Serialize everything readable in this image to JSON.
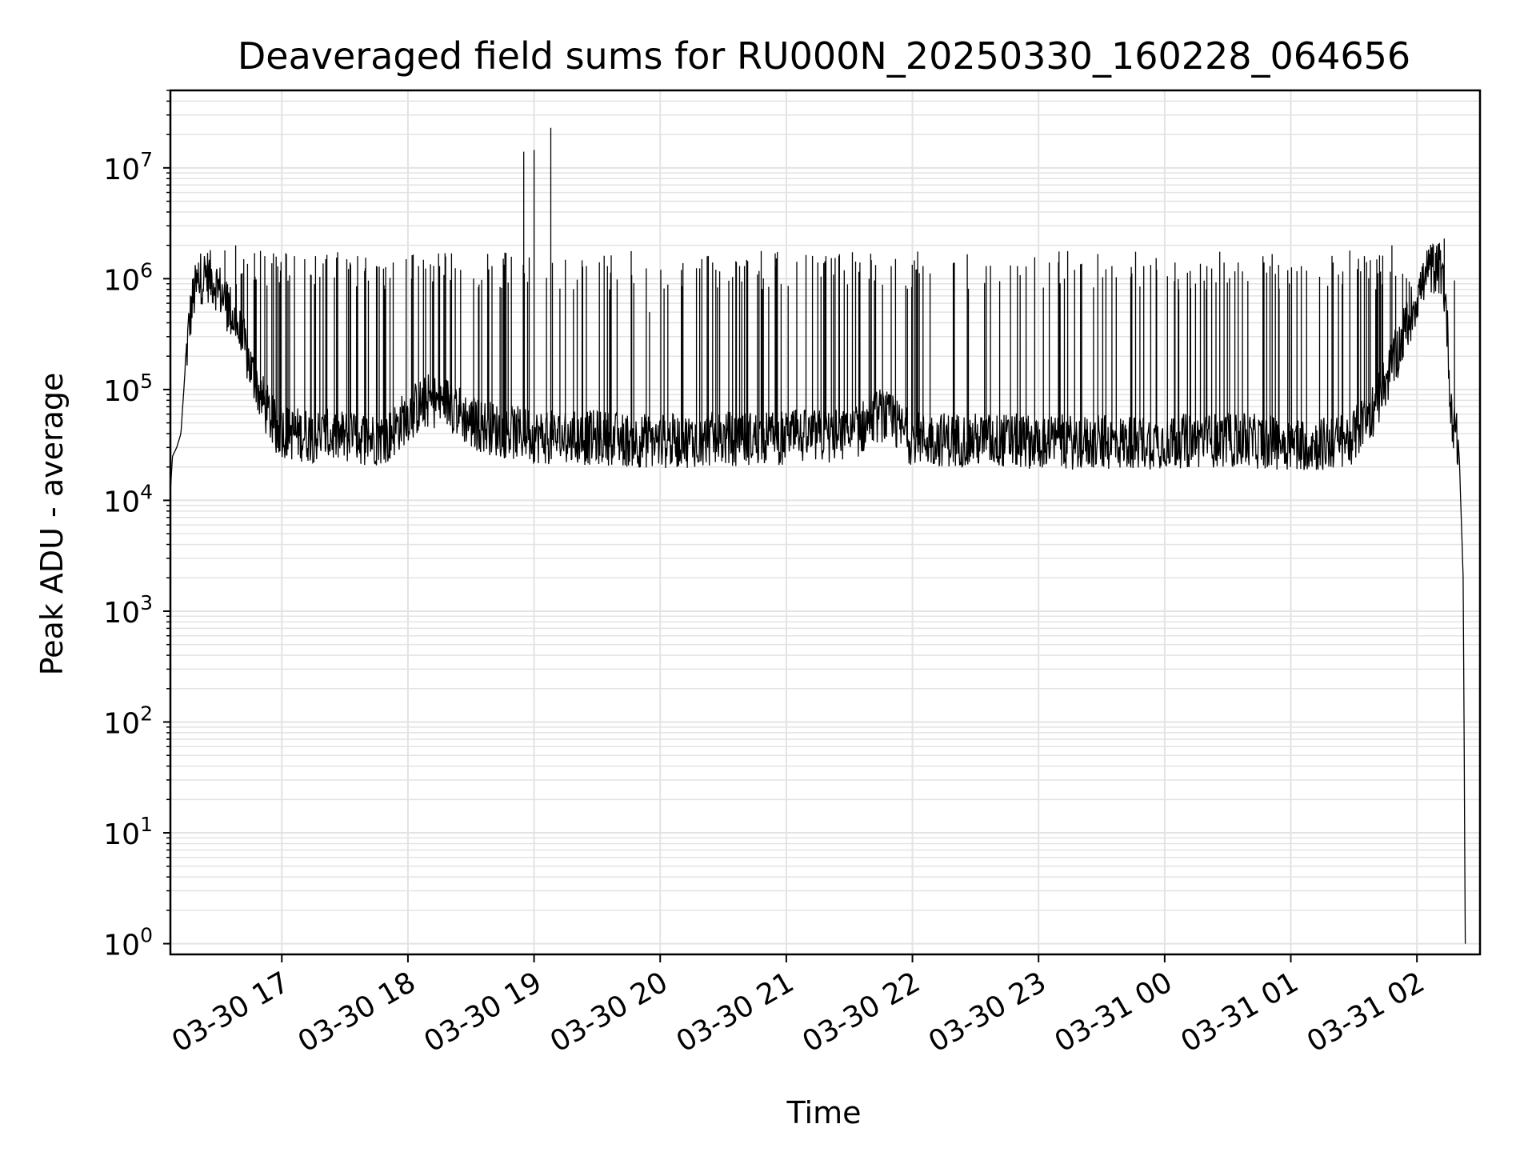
{
  "chart_data": {
    "type": "line",
    "title": "Deaveraged field sums for RU000N_20250330_160228_064656",
    "xlabel": "Time",
    "ylabel": "Peak ADU - average",
    "yscale": "log",
    "ylim": [
      0.8,
      50000000
    ],
    "xlim": [
      "2025-03-30 16:07",
      "2025-03-31 02:30"
    ],
    "grid": true,
    "line_color": "#000000",
    "grid_color": "#e3e3e3",
    "x_ticks": [
      {
        "t": "2025-03-30 17:00",
        "label": "03-30 17"
      },
      {
        "t": "2025-03-30 18:00",
        "label": "03-30 18"
      },
      {
        "t": "2025-03-30 19:00",
        "label": "03-30 19"
      },
      {
        "t": "2025-03-30 20:00",
        "label": "03-30 20"
      },
      {
        "t": "2025-03-30 21:00",
        "label": "03-30 21"
      },
      {
        "t": "2025-03-30 22:00",
        "label": "03-30 22"
      },
      {
        "t": "2025-03-30 23:00",
        "label": "03-30 23"
      },
      {
        "t": "2025-03-31 00:00",
        "label": "03-31 00"
      },
      {
        "t": "2025-03-31 01:00",
        "label": "03-31 01"
      },
      {
        "t": "2025-03-31 02:00",
        "label": "03-31 02"
      }
    ],
    "y_ticks": [
      {
        "base": "10",
        "exp": "0",
        "value": 1
      },
      {
        "base": "10",
        "exp": "1",
        "value": 10
      },
      {
        "base": "10",
        "exp": "2",
        "value": 100
      },
      {
        "base": "10",
        "exp": "3",
        "value": 1000
      },
      {
        "base": "10",
        "exp": "4",
        "value": 10000
      },
      {
        "base": "10",
        "exp": "5",
        "value": 100000
      },
      {
        "base": "10",
        "exp": "6",
        "value": 1000000
      },
      {
        "base": "10",
        "exp": "7",
        "value": 10000000
      }
    ],
    "series": [
      {
        "x": [
          "2025-03-30 16:07",
          "2025-03-30 16:08",
          "2025-03-30 16:10",
          "2025-03-30 16:12",
          "2025-03-30 16:14",
          "2025-03-30 16:16",
          "2025-03-30 16:18",
          "2025-03-30 16:21",
          "2025-03-30 16:24",
          "2025-03-30 16:28",
          "2025-03-30 16:32",
          "2025-03-30 16:37",
          "2025-03-30 16:42",
          "2025-03-30 16:47",
          "2025-03-30 16:52",
          "2025-03-30 16:57",
          "2025-03-30 17:05",
          "2025-03-30 17:20",
          "2025-03-30 17:35",
          "2025-03-30 17:50",
          "2025-03-30 18:00",
          "2025-03-30 18:10",
          "2025-03-30 18:20",
          "2025-03-30 18:30",
          "2025-03-30 18:45",
          "2025-03-30 19:00",
          "2025-03-30 19:15",
          "2025-03-30 19:30",
          "2025-03-30 19:45",
          "2025-03-30 20:00",
          "2025-03-30 20:30",
          "2025-03-30 21:00",
          "2025-03-30 21:30",
          "2025-03-30 21:45",
          "2025-03-30 22:00",
          "2025-03-30 22:30",
          "2025-03-30 23:00",
          "2025-03-30 23:30",
          "2025-03-31 00:00",
          "2025-03-31 00:30",
          "2025-03-31 01:00",
          "2025-03-31 01:20",
          "2025-03-31 01:30",
          "2025-03-31 01:40",
          "2025-03-31 01:50",
          "2025-03-31 02:00",
          "2025-03-31 02:04",
          "2025-03-31 02:08",
          "2025-03-31 02:12",
          "2025-03-31 02:14",
          "2025-03-31 02:16",
          "2025-03-31 02:18",
          "2025-03-31 02:20",
          "2025-03-31 02:22",
          "2025-03-31 02:23"
        ],
        "y": [
          12000,
          25000,
          30000,
          40000,
          150000,
          400000,
          700000,
          1000000,
          1100000,
          950000,
          700000,
          450000,
          250000,
          120000,
          70000,
          45000,
          40000,
          38000,
          37000,
          36000,
          60000,
          80000,
          75000,
          50000,
          42000,
          38000,
          36000,
          37000,
          35000,
          34000,
          36000,
          37000,
          38000,
          60000,
          36000,
          35000,
          34000,
          33000,
          34000,
          35000,
          33000,
          32000,
          38000,
          70000,
          200000,
          700000,
          1000000,
          1300000,
          1200000,
          500000,
          80000,
          40000,
          30000,
          2000,
          1
        ]
      }
    ],
    "spikes": [
      {
        "x": "2025-03-30 16:25",
        "y": 1300000
      },
      {
        "x": "2025-03-30 16:33",
        "y": 1800000
      },
      {
        "x": "2025-03-30 16:38",
        "y": 2000000
      },
      {
        "x": "2025-03-30 16:42",
        "y": 1500000
      },
      {
        "x": "2025-03-30 16:47",
        "y": 1700000
      },
      {
        "x": "2025-03-30 16:52",
        "y": 1600000
      },
      {
        "x": "2025-03-30 16:56",
        "y": 1500000
      },
      {
        "x": "2025-03-30 17:02",
        "y": 1700000
      },
      {
        "x": "2025-03-30 17:06",
        "y": 1600000
      },
      {
        "x": "2025-03-30 17:11",
        "y": 1500000
      },
      {
        "x": "2025-03-30 17:16",
        "y": 1600000
      },
      {
        "x": "2025-03-30 17:21",
        "y": 1500000
      },
      {
        "x": "2025-03-30 17:26",
        "y": 1550000
      },
      {
        "x": "2025-03-30 17:31",
        "y": 1500000
      },
      {
        "x": "2025-03-30 17:36",
        "y": 1600000
      },
      {
        "x": "2025-03-30 17:40",
        "y": 1550000
      },
      {
        "x": "2025-03-30 17:45",
        "y": 1300000
      },
      {
        "x": "2025-03-30 17:53",
        "y": 1400000
      },
      {
        "x": "2025-03-30 18:05",
        "y": 1300000
      },
      {
        "x": "2025-03-30 18:15",
        "y": 1300000
      },
      {
        "x": "2025-03-30 18:25",
        "y": 1200000
      },
      {
        "x": "2025-03-30 18:40",
        "y": 1300000
      },
      {
        "x": "2025-03-30 18:55",
        "y": 14000000
      },
      {
        "x": "2025-03-30 19:00",
        "y": 14500000
      },
      {
        "x": "2025-03-30 19:08",
        "y": 23000000
      },
      {
        "x": "2025-03-30 19:15",
        "y": 1400000
      },
      {
        "x": "2025-03-30 19:25",
        "y": 1300000
      },
      {
        "x": "2025-03-30 19:35",
        "y": 1300000
      },
      {
        "x": "2025-03-30 19:55",
        "y": 500000
      },
      {
        "x": "2025-03-30 20:10",
        "y": 1200000
      },
      {
        "x": "2025-03-30 20:25",
        "y": 1400000
      },
      {
        "x": "2025-03-30 20:40",
        "y": 1300000
      },
      {
        "x": "2025-03-30 20:55",
        "y": 1300000
      },
      {
        "x": "2025-03-30 21:15",
        "y": 1400000
      },
      {
        "x": "2025-03-30 21:25",
        "y": 1600000
      },
      {
        "x": "2025-03-30 21:35",
        "y": 1400000
      },
      {
        "x": "2025-03-30 21:50",
        "y": 1300000
      },
      {
        "x": "2025-03-30 22:05",
        "y": 1300000
      },
      {
        "x": "2025-03-30 22:20",
        "y": 1400000
      },
      {
        "x": "2025-03-30 22:35",
        "y": 1300000
      },
      {
        "x": "2025-03-30 22:50",
        "y": 1300000
      },
      {
        "x": "2025-03-30 23:05",
        "y": 1400000
      },
      {
        "x": "2025-03-30 23:20",
        "y": 1350000
      },
      {
        "x": "2025-03-30 23:35",
        "y": 1300000
      },
      {
        "x": "2025-03-30 23:50",
        "y": 1300000
      },
      {
        "x": "2025-03-31 00:05",
        "y": 1400000
      },
      {
        "x": "2025-03-31 00:20",
        "y": 1300000
      },
      {
        "x": "2025-03-31 00:35",
        "y": 1400000
      },
      {
        "x": "2025-03-31 00:50",
        "y": 1300000
      },
      {
        "x": "2025-03-31 01:05",
        "y": 1300000
      },
      {
        "x": "2025-03-31 01:20",
        "y": 1400000
      },
      {
        "x": "2025-03-31 01:35",
        "y": 1600000
      },
      {
        "x": "2025-03-31 01:48",
        "y": 2000000
      },
      {
        "x": "2025-03-31 02:13",
        "y": 2300000
      }
    ]
  }
}
